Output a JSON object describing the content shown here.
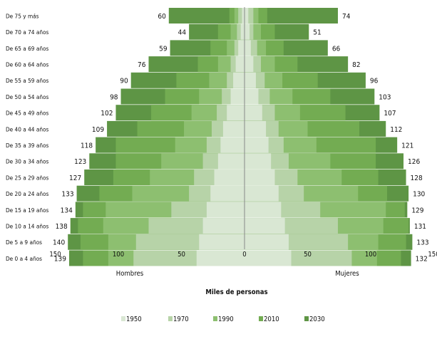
{
  "chart_data": {
    "type": "bar",
    "orientation": "horizontal",
    "layout": "population-pyramid",
    "xlabel": "Miles de personas",
    "left_label": "Hombres",
    "right_label": "Mujeres",
    "xlim": [
      -150,
      150
    ],
    "ticks": [
      150,
      100,
      50,
      0,
      50,
      100,
      150
    ],
    "categories": [
      "De 0 a 4 años",
      "De 5 a 9 años",
      "De 10 a 14 años",
      "De 15 a 19 años",
      "De 20 a 24 años",
      "De 25 a 29 años",
      "De 30 a 34 años",
      "De 35 a 39 años",
      "De 40 a 44 años",
      "De 45 a 49 años",
      "De 50 a 54 años",
      "De 55 a 59 años",
      "De 60 a 64 años",
      "De 65 a 69 años",
      "De 70 a 74 años",
      "De 75  y más"
    ],
    "series": [
      {
        "name": "1950",
        "color": "#d9e7d3",
        "men": [
          38,
          36,
          33,
          30,
          27,
          24,
          21,
          19,
          17,
          14,
          11,
          9,
          7,
          5,
          3,
          2
        ],
        "women": [
          37,
          35,
          32,
          29,
          27,
          24,
          21,
          19,
          17,
          14,
          11,
          9,
          7,
          5,
          4,
          3
        ]
      },
      {
        "name": "1970",
        "color": "#b7d3a8",
        "men": [
          88,
          86,
          76,
          58,
          44,
          40,
          33,
          30,
          26,
          22,
          18,
          14,
          11,
          8,
          6,
          5
        ],
        "women": [
          85,
          82,
          74,
          60,
          47,
          42,
          35,
          31,
          27,
          24,
          20,
          16,
          13,
          10,
          7,
          7
        ]
      },
      {
        "name": "1990",
        "color": "#8dbf70",
        "men": [
          108,
          108,
          112,
          110,
          89,
          75,
          66,
          55,
          48,
          42,
          36,
          28,
          21,
          14,
          11,
          8
        ],
        "women": [
          105,
          106,
          110,
          112,
          90,
          77,
          68,
          57,
          50,
          44,
          38,
          30,
          24,
          17,
          13,
          11
        ]
      },
      {
        "name": "2010",
        "color": "#73ac52",
        "men": [
          128,
          130,
          132,
          128,
          115,
          104,
          102,
          102,
          85,
          74,
          63,
          54,
          37,
          27,
          21,
          12
        ],
        "women": [
          124,
          128,
          130,
          127,
          113,
          106,
          104,
          104,
          91,
          80,
          68,
          58,
          42,
          31,
          24,
          18
        ]
      },
      {
        "name": "2030",
        "color": "#5e9545",
        "men": [
          139,
          140,
          138,
          134,
          133,
          127,
          123,
          118,
          109,
          102,
          98,
          90,
          76,
          59,
          44,
          60
        ],
        "women": [
          132,
          133,
          131,
          129,
          130,
          128,
          126,
          121,
          112,
          107,
          103,
          96,
          82,
          66,
          51,
          74
        ]
      }
    ],
    "labels_men": [
      139,
      140,
      138,
      134,
      133,
      127,
      123,
      118,
      109,
      102,
      98,
      90,
      76,
      59,
      44,
      60
    ],
    "labels_women": [
      132,
      133,
      131,
      129,
      130,
      128,
      126,
      121,
      112,
      107,
      103,
      96,
      82,
      66,
      51,
      74
    ],
    "legend": [
      "1950",
      "1970",
      "1990",
      "2010",
      "2030"
    ],
    "legend_position": "bottom",
    "grid": false
  }
}
